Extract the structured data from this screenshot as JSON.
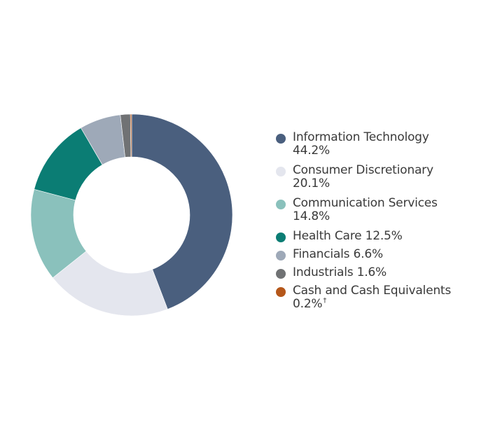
{
  "chart_data": {
    "type": "pie",
    "donut": true,
    "slices": [
      {
        "label": "Information Technology",
        "value_text": "44.2%",
        "value": 44.2,
        "color": "#4a5f7e"
      },
      {
        "label": "Consumer Discretionary",
        "value_text": "20.1%",
        "value": 20.1,
        "color": "#e4e6ee"
      },
      {
        "label": "Communication Services",
        "value_text": "14.8%",
        "value": 14.8,
        "color": "#8ac1bc"
      },
      {
        "label": "Health Care",
        "value_text": "12.5%",
        "value": 12.5,
        "color": "#0b7d74"
      },
      {
        "label": "Financials",
        "value_text": "6.6%",
        "value": 6.6,
        "color": "#9ea9b8"
      },
      {
        "label": "Industrials",
        "value_text": "1.6%",
        "value": 1.6,
        "color": "#707274"
      },
      {
        "label": "Cash and Cash Equivalents",
        "value_text": "0.2%",
        "value": 0.2,
        "color": "#b5571a",
        "footnote_mark": "†"
      }
    ],
    "legend_position": "right"
  }
}
